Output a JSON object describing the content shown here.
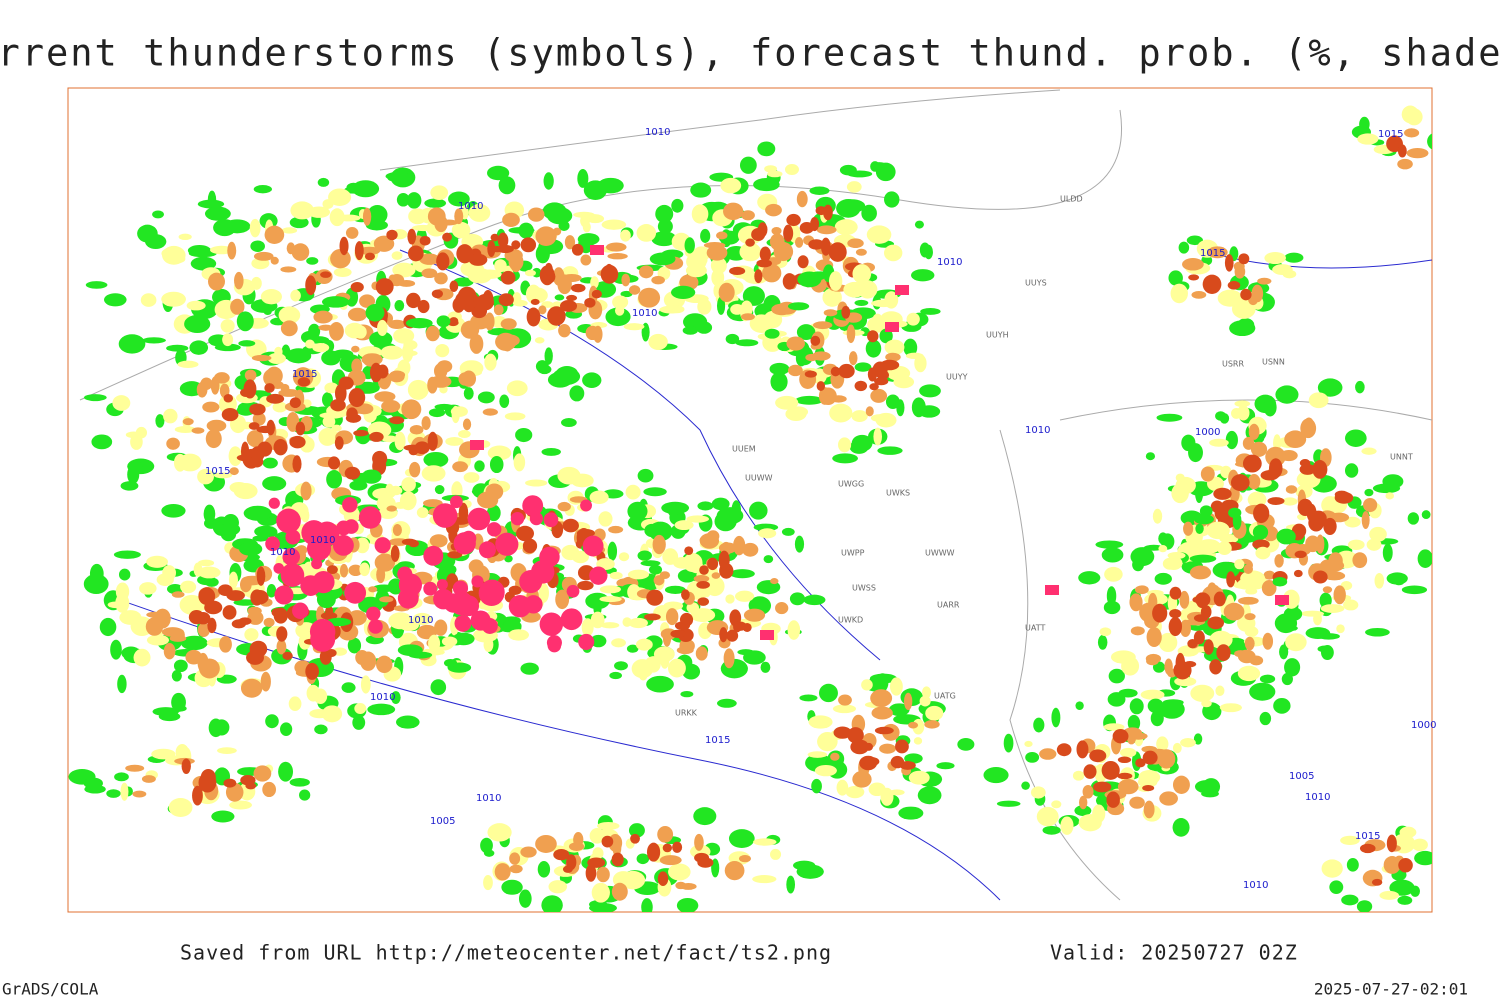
{
  "header": {
    "title": "Current thunderstorms (symbols), forecast thund. prob. (%, shaded)"
  },
  "map": {
    "isobar_labels": [
      "1010",
      "1010",
      "1010",
      "1015",
      "1015",
      "1010",
      "1010",
      "1010",
      "1010",
      "1015",
      "1000",
      "1010",
      "1000",
      "1005",
      "1010",
      "1015",
      "1010",
      "1015",
      "1005",
      "1010",
      "1010",
      "1015"
    ],
    "station_labels": [
      "UUEM",
      "UUWW",
      "UWGG",
      "UWKS",
      "UWPP",
      "UWSS",
      "UARR",
      "UATT",
      "UATG",
      "UUYY",
      "UUYH",
      "UUYS",
      "ULDD",
      "USRR",
      "USNN",
      "UNNT",
      "UWWW",
      "URKK",
      "UWKD"
    ]
  },
  "footer": {
    "source": "Saved from URL http://meteocenter.net/fact/ts2.png",
    "valid": "Valid: 20250727 02Z",
    "software": "GrADS/COLA",
    "timestamp": "2025-07-27-02:01"
  }
}
